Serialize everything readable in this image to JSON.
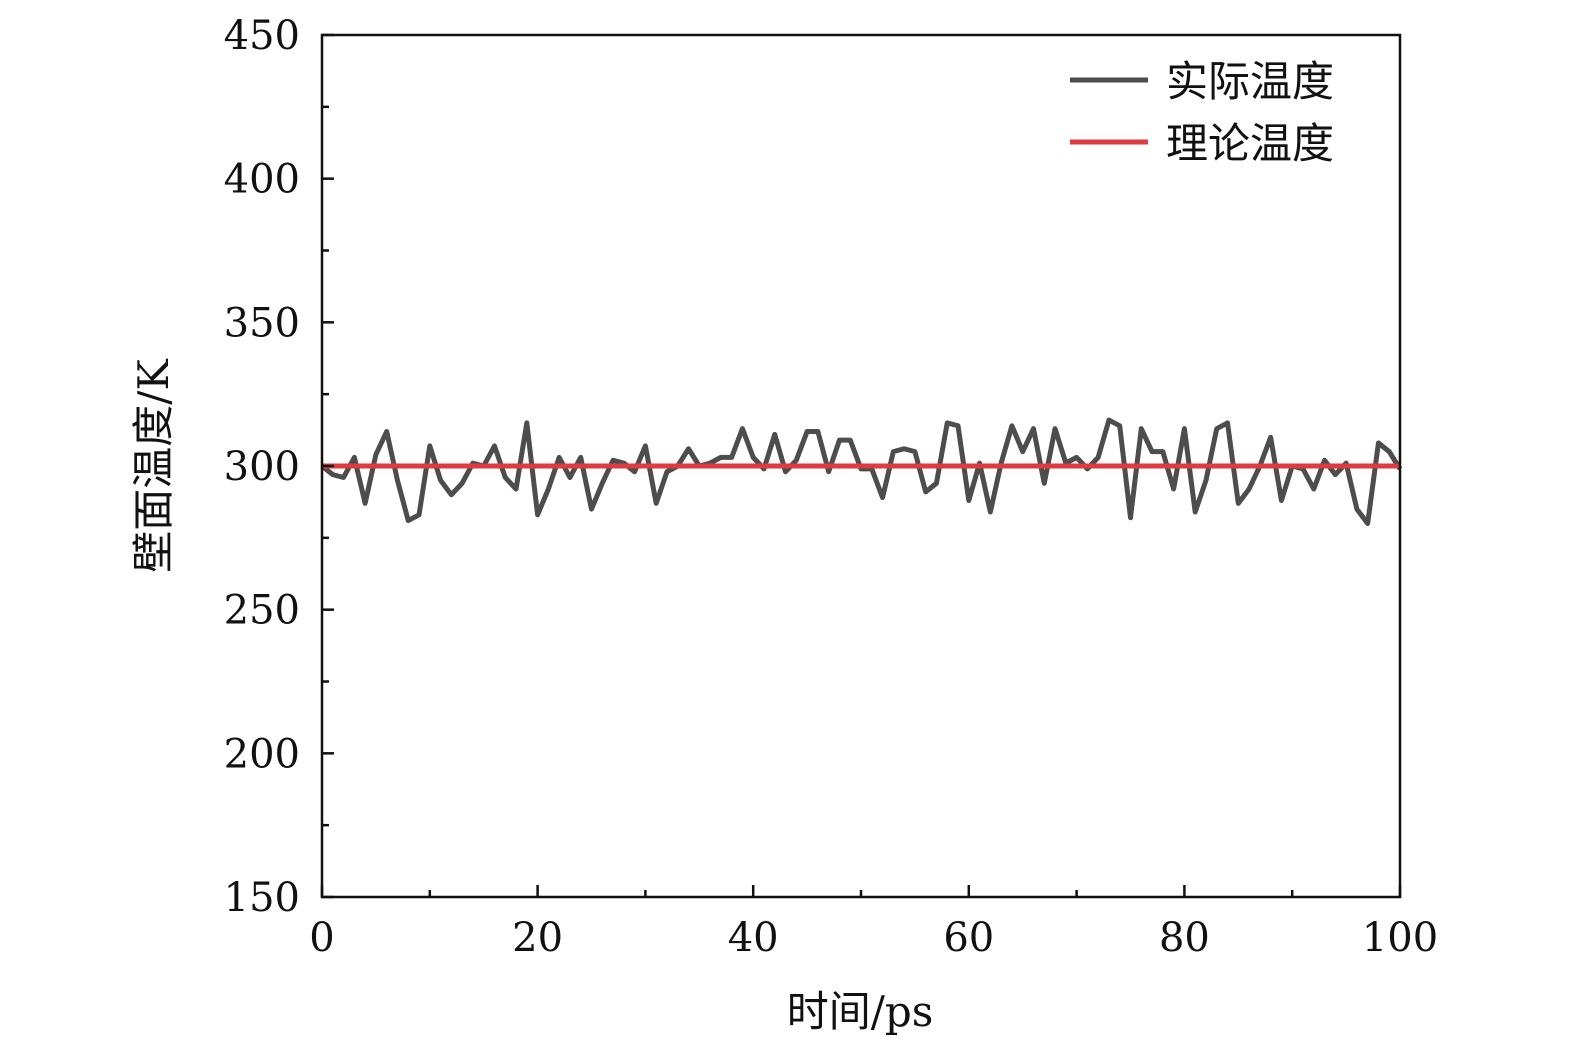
{
  "chart_data": {
    "type": "line",
    "title": "",
    "xlabel": "时间/ps",
    "ylabel": "壁面温度/K",
    "xlim": [
      0,
      100
    ],
    "ylim": [
      150,
      450
    ],
    "xticks": [
      0,
      20,
      40,
      60,
      80,
      100
    ],
    "yticks": [
      150,
      200,
      250,
      300,
      350,
      400,
      450
    ],
    "xtick_labels": [
      "0",
      "20",
      "40",
      "60",
      "80",
      "100"
    ],
    "ytick_labels": [
      "150",
      "200",
      "250",
      "300",
      "350",
      "400",
      "450"
    ],
    "grid": false,
    "legend_position": "top-right",
    "series": [
      {
        "name": "实际温度",
        "color": "#4d4d4d",
        "x": [
          0,
          1,
          2,
          3,
          4,
          5,
          6,
          7,
          8,
          9,
          10,
          11,
          12,
          13,
          14,
          15,
          16,
          17,
          18,
          19,
          20,
          21,
          22,
          23,
          24,
          25,
          26,
          27,
          28,
          29,
          30,
          31,
          32,
          33,
          34,
          35,
          36,
          37,
          38,
          39,
          40,
          41,
          42,
          43,
          44,
          45,
          46,
          47,
          48,
          49,
          50,
          51,
          52,
          53,
          54,
          55,
          56,
          57,
          58,
          59,
          60,
          61,
          62,
          63,
          64,
          65,
          66,
          67,
          68,
          69,
          70,
          71,
          72,
          73,
          74,
          75,
          76,
          77,
          78,
          79,
          80,
          81,
          82,
          83,
          84,
          85,
          86,
          87,
          88,
          89,
          90,
          91,
          92,
          93,
          94,
          95,
          96,
          97,
          98,
          99,
          100
        ],
        "y": [
          300,
          297,
          296,
          303,
          287,
          304,
          312,
          295,
          281,
          283,
          307,
          295,
          290,
          294,
          301,
          300,
          307,
          296,
          292,
          315,
          283,
          292,
          303,
          296,
          303,
          285,
          294,
          302,
          301,
          298,
          307,
          287,
          298,
          300,
          306,
          300,
          301,
          303,
          303,
          313,
          303,
          299,
          311,
          298,
          302,
          312,
          312,
          298,
          309,
          309,
          299,
          299,
          289,
          305,
          306,
          305,
          291,
          294,
          315,
          314,
          288,
          301,
          284,
          301,
          314,
          305,
          313,
          294,
          313,
          301,
          303,
          299,
          303,
          316,
          314,
          282,
          313,
          305,
          305,
          292,
          313,
          284,
          295,
          313,
          315,
          287,
          292,
          300,
          310,
          288,
          300,
          299,
          292,
          302,
          297,
          301,
          285,
          280,
          308,
          305,
          299
        ]
      },
      {
        "name": "理论温度",
        "color": "#e0393e",
        "x": [
          0,
          100
        ],
        "y": [
          300,
          300
        ]
      }
    ]
  }
}
